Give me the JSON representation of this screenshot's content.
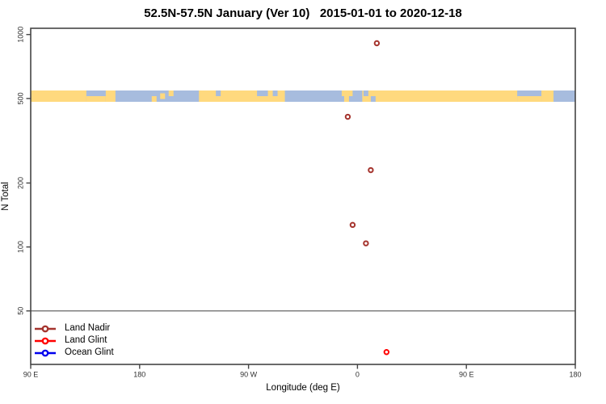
{
  "title": "52.5N-57.5N January (Ver 10)   2015-01-01 to 2020-12-18",
  "legend": {
    "items": [
      {
        "label": "Land Nadir",
        "color": "#A5342E"
      },
      {
        "label": "Land Glint",
        "color": "#FF0000"
      },
      {
        "label": "Ocean Glint",
        "color": "#0000EE"
      }
    ]
  },
  "chart_data": {
    "type": "scatter",
    "title": "52.5N-57.5N January (Ver 10)  2015-01-01 to 2020-12-18",
    "xlabel": "Longitude (deg E)",
    "ylabel": "N Total",
    "x_axis": {
      "note": "longitude axis wraps: spans 450 deg starting at 90E",
      "range_unwrapped": [
        90,
        540
      ],
      "ticks": [
        {
          "u": 90,
          "label": "90 E"
        },
        {
          "u": 180,
          "label": "180"
        },
        {
          "u": 270,
          "label": "90 W"
        },
        {
          "u": 360,
          "label": "0"
        },
        {
          "u": 450,
          "label": "90 E"
        },
        {
          "u": 540,
          "label": "180"
        }
      ]
    },
    "y_axis": {
      "scale": "log",
      "ticks": [
        50,
        100,
        200,
        500,
        1000
      ],
      "range": [
        28,
        1070
      ]
    },
    "series": [
      {
        "name": "Land Nadir",
        "color": "#A5342E",
        "points": [
          {
            "lon": 16,
            "n": 910
          },
          {
            "lon": -8,
            "n": 410
          },
          {
            "lon": 11,
            "n": 230
          },
          {
            "lon": -4,
            "n": 127
          },
          {
            "lon": 7,
            "n": 104
          }
        ]
      },
      {
        "name": "Land Glint",
        "color": "#FF0000",
        "points": [
          {
            "lon": 24,
            "n": 32
          }
        ]
      },
      {
        "name": "Ocean Glint",
        "color": "#0000EE",
        "points": []
      }
    ],
    "reference_line": {
      "n": 50,
      "color": "#7F7F7F"
    },
    "map_band": {
      "center_n": 500,
      "land_color": "#FFD97E",
      "ocean_color": "#A7BCDE",
      "land_segments": [
        {
          "from": 90,
          "to": 136,
          "part": "full"
        },
        {
          "from": 136,
          "to": 152,
          "part": "bottom"
        },
        {
          "from": 152,
          "to": 160,
          "part": "full"
        },
        {
          "from": 190,
          "to": 194,
          "part": "bottom"
        },
        {
          "from": 197,
          "to": 201,
          "part": "mid"
        },
        {
          "from": 204,
          "to": 208,
          "part": "top"
        },
        {
          "from": 229,
          "to": 300,
          "part": "full"
        },
        {
          "from": 347,
          "to": 356,
          "part": "top"
        },
        {
          "from": 349,
          "to": 353,
          "part": "bottom"
        },
        {
          "from": 364,
          "to": 492,
          "part": "full"
        },
        {
          "from": 492,
          "to": 512,
          "part": "bottom"
        },
        {
          "from": 512,
          "to": 522,
          "part": "full"
        }
      ],
      "ocean_patches": [
        {
          "from": 243,
          "to": 247,
          "part": "top"
        },
        {
          "from": 277,
          "to": 286,
          "part": "top"
        },
        {
          "from": 290,
          "to": 294,
          "part": "top"
        },
        {
          "from": 365,
          "to": 369,
          "part": "top"
        },
        {
          "from": 371,
          "to": 375,
          "part": "bottom"
        }
      ]
    }
  }
}
